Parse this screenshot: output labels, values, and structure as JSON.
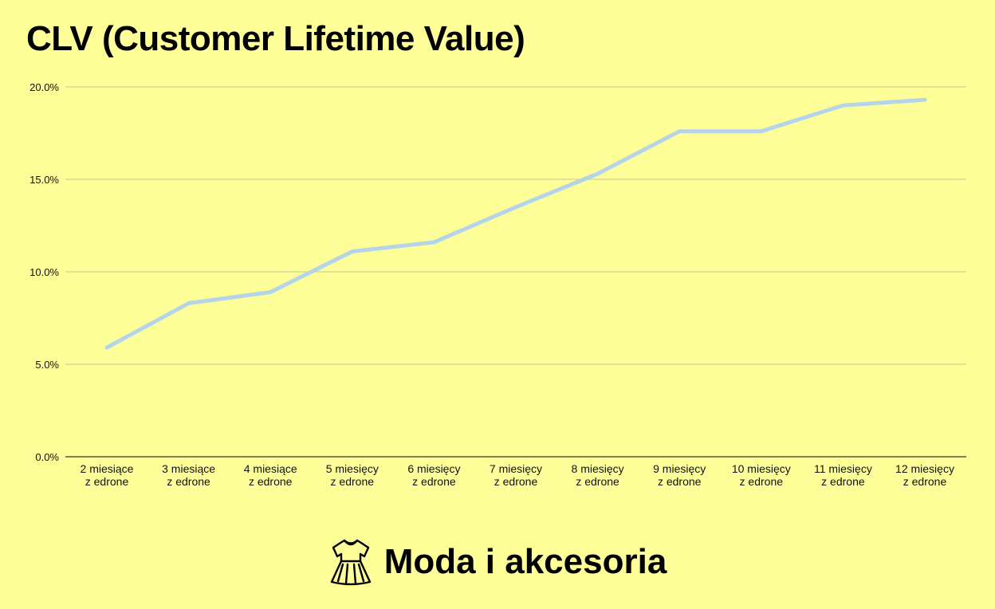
{
  "colors": {
    "background": "#ffff99",
    "line": "#b4d4ec",
    "gridline": "#c9c48a",
    "axis": "#333333",
    "text": "#000000"
  },
  "footer": {
    "icon": "dress-icon",
    "label": "Moda i akcesoria"
  },
  "chart_data": {
    "type": "line",
    "title": "CLV (Customer Lifetime Value)",
    "xlabel": "",
    "ylabel": "",
    "ylim": [
      0,
      20
    ],
    "yticks": [
      0,
      5,
      10,
      15,
      20
    ],
    "ytick_labels": [
      "0.0%",
      "5.0%",
      "10.0%",
      "15.0%",
      "20.0%"
    ],
    "grid": true,
    "legend": "none",
    "categories": [
      [
        "2 miesiące",
        "z edrone"
      ],
      [
        "3 miesiące",
        "z edrone"
      ],
      [
        "4 miesiące",
        "z edrone"
      ],
      [
        "5 miesięcy",
        "z edrone"
      ],
      [
        "6 miesięcy",
        "z edrone"
      ],
      [
        "7 miesięcy",
        "z edrone"
      ],
      [
        "8 miesięcy",
        "z edrone"
      ],
      [
        "9 miesięcy",
        "z edrone"
      ],
      [
        "10 miesięcy",
        "z edrone"
      ],
      [
        "11 miesięcy",
        "z edrone"
      ],
      [
        "12 miesięcy",
        "z edrone"
      ]
    ],
    "series": [
      {
        "values": [
          5.9,
          8.3,
          8.9,
          11.1,
          11.6,
          13.5,
          15.3,
          17.6,
          17.6,
          19.0,
          19.3
        ]
      }
    ]
  }
}
